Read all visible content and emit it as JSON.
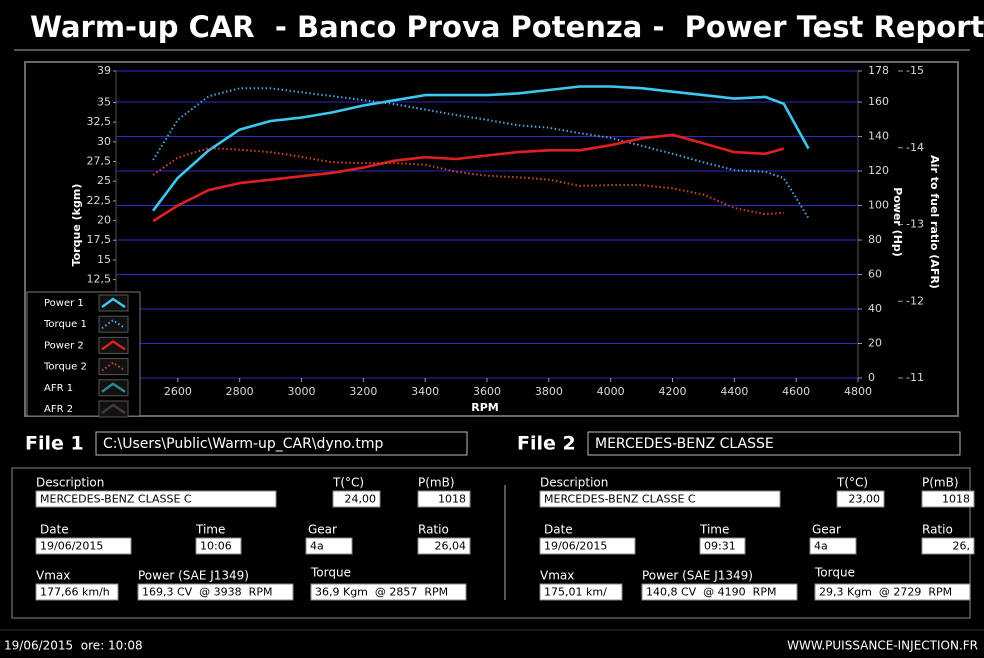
{
  "header": {
    "title": "Warm-up CAR  - Banco Prova Potenza -  Power Test Report"
  },
  "chart_data": {
    "type": "line",
    "ylabel": "Torque (kgm)",
    "y2label": "Power (Hp)",
    "y3label": "Air to fuel ratio (AFR)",
    "xlabel": "RPM",
    "x": [
      2520,
      2600,
      2700,
      2800,
      2900,
      3000,
      3100,
      3200,
      3300,
      3400,
      3500,
      3600,
      3700,
      3800,
      3900,
      4000,
      4100,
      4200,
      4300,
      4400,
      4500,
      4560,
      4640
    ],
    "xlim": [
      2400,
      4800
    ],
    "xticks": [
      2600,
      2800,
      3000,
      3200,
      3400,
      3600,
      3800,
      4000,
      4200,
      4400,
      4600,
      4800
    ],
    "ylim": [
      0,
      39
    ],
    "yticks": [
      39,
      35,
      {
        "value": 32.5,
        "label": "32,5"
      },
      30,
      {
        "value": 27.5,
        "label": "27,5"
      },
      25,
      {
        "value": 22.5,
        "label": "22,5"
      },
      20,
      {
        "value": 17.5,
        "label": "17,5"
      },
      15,
      {
        "value": 12.5,
        "label": "12,5"
      }
    ],
    "y2lim": [
      0,
      178
    ],
    "y2ticks": [
      0,
      20,
      40,
      60,
      80,
      100,
      120,
      140,
      160,
      178
    ],
    "y3lim": [
      -11,
      -15
    ],
    "y3ticks": [
      -15,
      -14,
      -13,
      -12,
      -11
    ],
    "grid": "y2",
    "legend": "lower-left",
    "series": [
      {
        "name": "Power 1",
        "color": "#3cc8f0",
        "style": "solid",
        "axis": "y2",
        "values": [
          97,
          116,
          132,
          144,
          149,
          151,
          154,
          158,
          161,
          164,
          164,
          164,
          165,
          167,
          169,
          169,
          168,
          166,
          164,
          162,
          163,
          159,
          133
        ]
      },
      {
        "name": "Torque 1",
        "color": "#4aa8e8",
        "style": "dotted",
        "axis": "y",
        "values": [
          27.7,
          32.8,
          35.8,
          36.8,
          36.8,
          36.3,
          35.8,
          35.3,
          34.8,
          34.1,
          33.4,
          32.8,
          32.1,
          31.8,
          31.1,
          30.5,
          29.5,
          28.5,
          27.4,
          26.4,
          26.2,
          25.4,
          20.3
        ]
      },
      {
        "name": "Power 2",
        "color": "#e02020",
        "style": "solid",
        "axis": "y2",
        "values": [
          91,
          100,
          109,
          113,
          115,
          117,
          119,
          122,
          126,
          128,
          127,
          129,
          131,
          132,
          132,
          135,
          139,
          141,
          136,
          131,
          130,
          133,
          null
        ]
      },
      {
        "name": "Torque 2",
        "color": "#d04a28",
        "style": "dotted",
        "axis": "y",
        "values": [
          25.8,
          28.0,
          29.2,
          29.0,
          28.7,
          28.1,
          27.4,
          27.3,
          27.3,
          27.1,
          26.2,
          25.7,
          25.5,
          25.2,
          24.4,
          24.5,
          24.5,
          24.1,
          23.3,
          21.6,
          20.8,
          21.0,
          null
        ]
      },
      {
        "name": "AFR 1",
        "color": "#2a8a9a",
        "style": "solid",
        "axis": "y3",
        "values": [
          null,
          null,
          null,
          null,
          null,
          null,
          null,
          null,
          null,
          null,
          null,
          null,
          null,
          null,
          null,
          null,
          null,
          null,
          null,
          null,
          null,
          null,
          null
        ]
      },
      {
        "name": "AFR 2",
        "color": "#4a3a3a",
        "style": "solid",
        "axis": "y3",
        "values": [
          null,
          null,
          null,
          null,
          null,
          null,
          null,
          null,
          null,
          null,
          null,
          null,
          null,
          null,
          null,
          null,
          null,
          null,
          null,
          null,
          null,
          null,
          null
        ]
      }
    ]
  },
  "files": [
    {
      "label": "File 1",
      "value": "C:\\Users\\Public\\Warm-up_CAR\\dyno.tmp"
    },
    {
      "label": "File 2",
      "value": "MERCEDES-BENZ CLASSE"
    }
  ],
  "panels": [
    {
      "fields": [
        {
          "label": "Description",
          "value": "MERCEDES-BENZ CLASSE C"
        },
        {
          "label": "T(°C)",
          "value": "24,00"
        },
        {
          "label": "P(mB)",
          "value": "1018"
        },
        {
          "label": "Date",
          "value": "19/06/2015"
        },
        {
          "label": "Time",
          "value": "10:06"
        },
        {
          "label": "Gear",
          "value": "4a"
        },
        {
          "label": "Ratio",
          "value": "26,04"
        },
        {
          "label": "Vmax",
          "value": "177,66 km/h"
        },
        {
          "label": "Power (SAE J1349)",
          "value": "169,3 CV  @ 3938  RPM"
        },
        {
          "label": "Torque",
          "value": "36,9 Kgm  @ 2857  RPM"
        }
      ]
    },
    {
      "fields": [
        {
          "label": "Description",
          "value": "MERCEDES-BENZ CLASSE C"
        },
        {
          "label": "T(°C)",
          "value": "23,00"
        },
        {
          "label": "P(mB)",
          "value": "1018"
        },
        {
          "label": "Date",
          "value": "19/06/2015"
        },
        {
          "label": "Time",
          "value": "09:31"
        },
        {
          "label": "Gear",
          "value": "4a"
        },
        {
          "label": "Ratio",
          "value": "26,"
        },
        {
          "label": "Vmax",
          "value": "175,01 km/"
        },
        {
          "label": "Power (SAE J1349)",
          "value": "140,8 CV  @ 4190  RPM"
        },
        {
          "label": "Torque",
          "value": "29,3 Kgm  @ 2729  RPM"
        }
      ]
    }
  ],
  "footer": {
    "left": "19/06/2015  ore: 10:08",
    "right": "WWW.PUISSANCE-INJECTION.FR"
  }
}
